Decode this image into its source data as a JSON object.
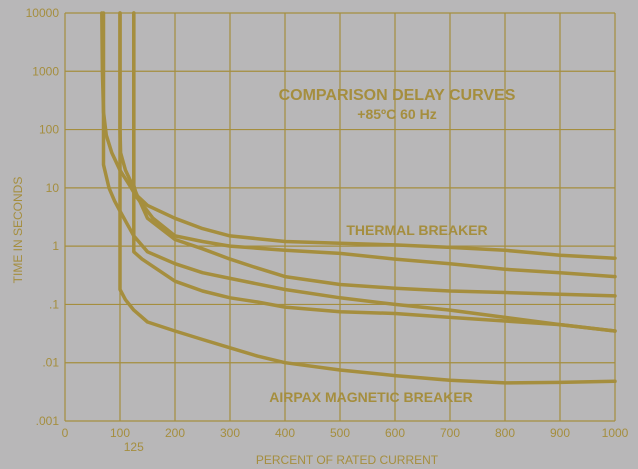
{
  "chart_data": {
    "type": "line",
    "title": "COMPARISON DELAY CURVES",
    "subtitle": "+85ºC  60 Hz",
    "xlabel": "PERCENT OF RATED CURRENT",
    "ylabel": "TIME IN SECONDS",
    "xlim": [
      0,
      1000
    ],
    "ylim": [
      0.001,
      10000
    ],
    "y_scale": "log",
    "grid": true,
    "x_ticks": [
      0,
      100,
      200,
      300,
      400,
      500,
      600,
      700,
      800,
      900,
      1000
    ],
    "x_ticks_text": [
      "0",
      "100",
      "200",
      "300",
      "400",
      "500",
      "600",
      "700",
      "800",
      "900",
      "1000"
    ],
    "x_extra_tick": {
      "value": 125,
      "text": "125"
    },
    "y_ticks": [
      0.001,
      0.01,
      0.1,
      1,
      10,
      100,
      1000,
      10000
    ],
    "y_ticks_text": [
      ".001",
      ".01",
      ".1",
      "1",
      "10",
      "100",
      "1000",
      "10000"
    ],
    "colors": {
      "background": "#b8b7b8",
      "ink": "#a58e3e"
    },
    "annotations": [
      {
        "text": "THERMAL BREAKER",
        "x": 790,
        "y": 2.1
      },
      {
        "text": "AIRPAX MAGNETIC BREAKER",
        "x": 410,
        "y": 0.0016
      }
    ],
    "series": [
      {
        "values_x": [
          125,
          125,
          130,
          150,
          200,
          250,
          300,
          400,
          500,
          600,
          700,
          800,
          900,
          1000
        ],
        "values_y": [
          10000,
          11,
          7.5,
          5,
          3,
          2,
          1.5,
          1.2,
          1.12,
          1.05,
          0.95,
          0.85,
          0.7,
          0.62
        ]
      },
      {
        "values_x": [
          67,
          68,
          70,
          75,
          85,
          100,
          115,
          130,
          160,
          200,
          250,
          300,
          400,
          500,
          600,
          700,
          800,
          900,
          1000
        ],
        "values_y": [
          10000,
          1000,
          200,
          80,
          40,
          20,
          12,
          7,
          3,
          1.5,
          1.2,
          1.0,
          0.85,
          0.75,
          0.6,
          0.5,
          0.4,
          0.35,
          0.3
        ]
      },
      {
        "values_x": [
          100,
          100,
          101,
          110,
          125,
          150,
          200,
          250,
          300,
          350,
          400,
          500,
          600,
          700,
          800,
          900,
          1000
        ],
        "values_y": [
          10000,
          100,
          40,
          20,
          10,
          3,
          1.3,
          0.9,
          0.6,
          0.42,
          0.3,
          0.22,
          0.19,
          0.17,
          0.16,
          0.15,
          0.14
        ]
      },
      {
        "values_x": [
          125,
          125,
          140,
          160,
          200,
          250,
          300,
          350,
          400,
          500,
          600,
          700,
          800,
          900,
          1000
        ],
        "values_y": [
          10000,
          0.8,
          0.6,
          0.45,
          0.25,
          0.17,
          0.13,
          0.11,
          0.09,
          0.075,
          0.07,
          0.06,
          0.052,
          0.045,
          0.035
        ]
      },
      {
        "values_x": [
          70,
          70,
          80,
          90,
          100,
          125,
          150,
          200,
          250,
          300,
          400,
          500,
          600,
          700,
          800,
          900,
          1000
        ],
        "values_y": [
          10000,
          25,
          10,
          6,
          4,
          1.5,
          0.8,
          0.5,
          0.35,
          0.28,
          0.18,
          0.13,
          0.1,
          0.08,
          0.06,
          0.045,
          0.035
        ]
      },
      {
        "values_x": [
          100,
          100,
          110,
          125,
          150,
          200,
          250,
          300,
          350,
          400,
          500,
          600,
          700,
          800,
          900,
          1000
        ],
        "values_y": [
          10000,
          0.18,
          0.12,
          0.08,
          0.05,
          0.035,
          0.025,
          0.018,
          0.013,
          0.01,
          0.0075,
          0.006,
          0.005,
          0.0045,
          0.0046,
          0.0048
        ]
      }
    ]
  }
}
